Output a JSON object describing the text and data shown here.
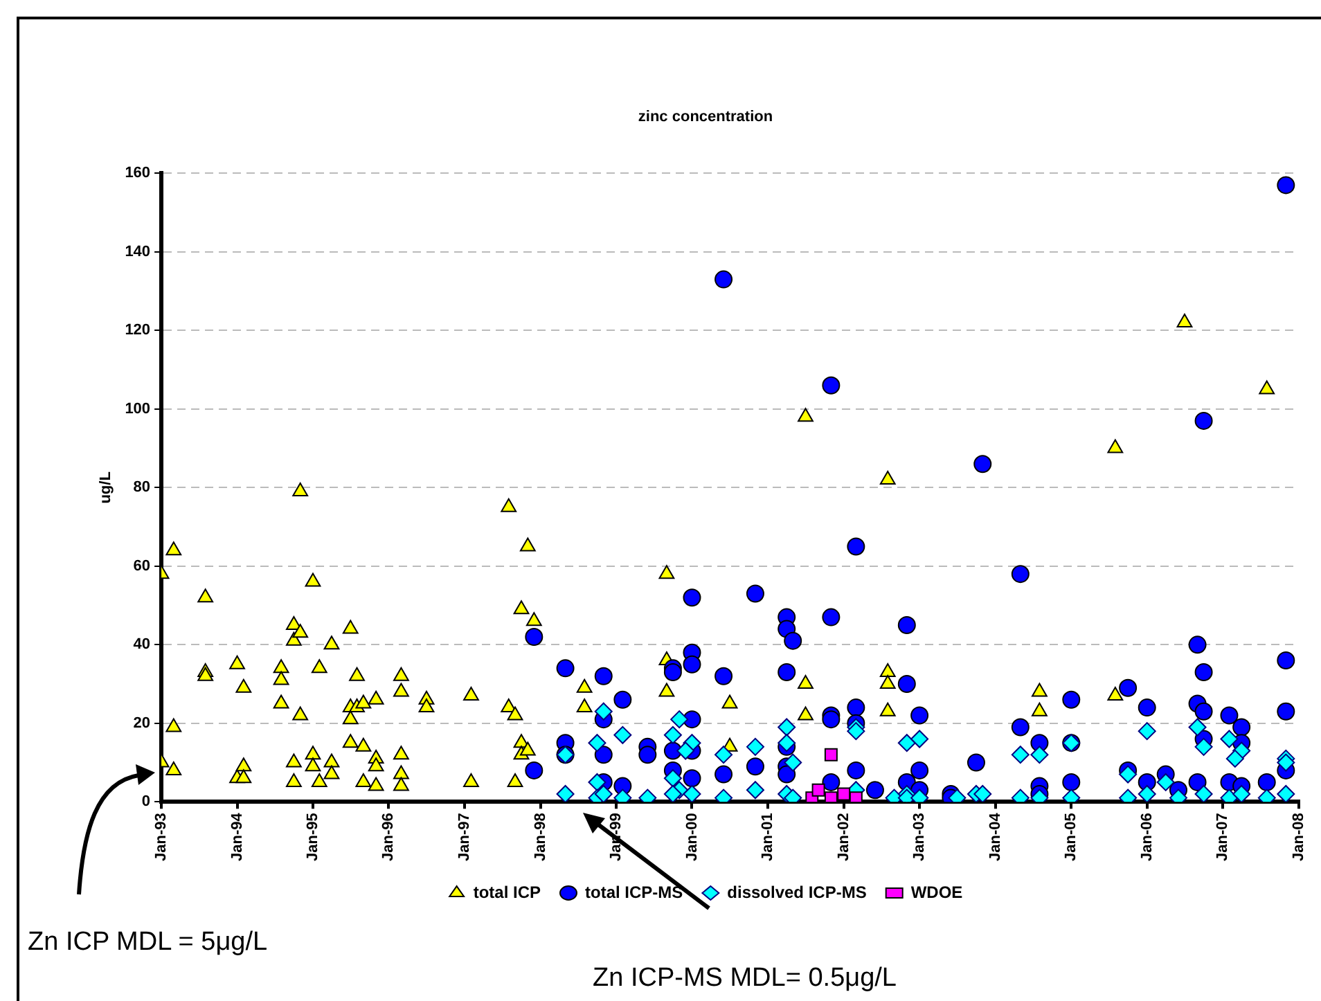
{
  "chart_data": {
    "type": "scatter",
    "title": "zinc concentration",
    "ylabel": "ug/L",
    "xlim": [
      "1993-01",
      "2008-01"
    ],
    "xticks": [
      {
        "value": "1993-01",
        "label": "Jan-93"
      },
      {
        "value": "1994-01",
        "label": "Jan-94"
      },
      {
        "value": "1995-01",
        "label": "Jan-95"
      },
      {
        "value": "1996-01",
        "label": "Jan-96"
      },
      {
        "value": "1997-01",
        "label": "Jan-97"
      },
      {
        "value": "1998-01",
        "label": "Jan-98"
      },
      {
        "value": "1999-01",
        "label": "Jan-99"
      },
      {
        "value": "2000-01",
        "label": "Jan-00"
      },
      {
        "value": "2001-01",
        "label": "Jan-01"
      },
      {
        "value": "2002-01",
        "label": "Jan-02"
      },
      {
        "value": "2003-01",
        "label": "Jan-03"
      },
      {
        "value": "2004-01",
        "label": "Jan-04"
      },
      {
        "value": "2005-01",
        "label": "Jan-05"
      },
      {
        "value": "2006-01",
        "label": "Jan-06"
      },
      {
        "value": "2007-01",
        "label": "Jan-07"
      },
      {
        "value": "2008-01",
        "label": "Jan-08"
      }
    ],
    "ylim": [
      0,
      160
    ],
    "yticks": [
      0,
      20,
      40,
      60,
      80,
      100,
      120,
      140,
      160
    ],
    "grid": "y",
    "legend": "bottom",
    "annotations": [
      "Zn ICP MDL = 5μg/L",
      "Zn ICP-MS MDL= 0.5μg/L"
    ],
    "series": [
      {
        "name": "total ICP",
        "color": "#ffff00",
        "marker": "triangle",
        "x": [
          "1993-01",
          "1993-01",
          "1993-03",
          "1993-03",
          "1993-03",
          "1993-08",
          "1993-08",
          "1993-08",
          "1994-01",
          "1994-01",
          "1994-02",
          "1994-02",
          "1994-02",
          "1994-08",
          "1994-08",
          "1994-08",
          "1994-10",
          "1994-10",
          "1994-10",
          "1994-10",
          "1994-11",
          "1994-11",
          "1994-11",
          "1995-01",
          "1995-01",
          "1995-01",
          "1995-02",
          "1995-02",
          "1995-04",
          "1995-04",
          "1995-04",
          "1995-07",
          "1995-07",
          "1995-07",
          "1995-07",
          "1995-08",
          "1995-08",
          "1995-09",
          "1995-09",
          "1995-09",
          "1995-11",
          "1995-11",
          "1995-11",
          "1995-11",
          "1996-03",
          "1996-03",
          "1996-03",
          "1996-03",
          "1996-03",
          "1996-07",
          "1996-07",
          "1997-02",
          "1997-02",
          "1997-08",
          "1997-08",
          "1997-09",
          "1997-09",
          "1997-10",
          "1997-10",
          "1997-10",
          "1997-11",
          "1997-11",
          "1997-12",
          "1998-08",
          "1998-08",
          "1999-09",
          "1999-09",
          "1999-09",
          "2000-07",
          "2000-07",
          "2001-07",
          "2001-07",
          "2001-07",
          "2002-08",
          "2002-08",
          "2002-08",
          "2002-08",
          "2004-08",
          "2004-08",
          "2005-08",
          "2005-08",
          "2006-07",
          "2007-08"
        ],
        "values": [
          58,
          10,
          64,
          19,
          8,
          52,
          33,
          32,
          35,
          6,
          29,
          9,
          6,
          34,
          31,
          25,
          45,
          41,
          10,
          5,
          79,
          43,
          22,
          56,
          12,
          9,
          34,
          5,
          40,
          10,
          7,
          44,
          24,
          21,
          15,
          32,
          24,
          25,
          14,
          5,
          26,
          11,
          9,
          4,
          32,
          28,
          12,
          7,
          4,
          26,
          24,
          27,
          5,
          75,
          24,
          22,
          5,
          49,
          15,
          12,
          65,
          13,
          46,
          29,
          24,
          58,
          36,
          28,
          25,
          14,
          98,
          30,
          22,
          82,
          33,
          30,
          23,
          28,
          23,
          90,
          27,
          122,
          105
        ]
      },
      {
        "name": "total ICP-MS",
        "color": "#0000ff",
        "marker": "circle",
        "x": [
          "1997-12",
          "1997-12",
          "1998-05",
          "1998-05",
          "1998-05",
          "1998-11",
          "1998-11",
          "1998-11",
          "1998-11",
          "1999-02",
          "1999-02",
          "1999-06",
          "1999-06",
          "1999-10",
          "1999-10",
          "1999-10",
          "1999-10",
          "2000-01",
          "2000-01",
          "2000-01",
          "2000-01",
          "2000-01",
          "2000-01",
          "2000-06",
          "2000-06",
          "2000-06",
          "2000-11",
          "2000-11",
          "2001-04",
          "2001-04",
          "2001-04",
          "2001-04",
          "2001-04",
          "2001-04",
          "2001-05",
          "2001-11",
          "2001-11",
          "2001-11",
          "2001-11",
          "2001-11",
          "2002-03",
          "2002-03",
          "2002-03",
          "2002-03",
          "2002-06",
          "2002-11",
          "2002-11",
          "2002-11",
          "2003-01",
          "2003-01",
          "2003-01",
          "2003-06",
          "2003-06",
          "2003-10",
          "2003-11",
          "2004-05",
          "2004-05",
          "2004-08",
          "2004-08",
          "2004-08",
          "2005-01",
          "2005-01",
          "2005-01",
          "2005-10",
          "2005-10",
          "2006-01",
          "2006-01",
          "2006-04",
          "2006-06",
          "2006-09",
          "2006-09",
          "2006-09",
          "2006-10",
          "2006-10",
          "2006-10",
          "2006-10",
          "2007-02",
          "2007-02",
          "2007-04",
          "2007-04",
          "2007-04",
          "2007-08",
          "2007-11",
          "2007-11",
          "2007-11",
          "2007-11"
        ],
        "values": [
          42,
          8,
          34,
          15,
          12,
          32,
          21,
          12,
          5,
          26,
          4,
          14,
          12,
          34,
          33,
          13,
          8,
          52,
          38,
          35,
          21,
          13,
          6,
          32,
          133,
          7,
          53,
          9,
          47,
          44,
          33,
          14,
          9,
          7,
          41,
          47,
          106,
          22,
          21,
          5,
          65,
          24,
          20,
          8,
          3,
          45,
          30,
          5,
          22,
          8,
          3,
          2,
          1,
          10,
          86,
          58,
          19,
          15,
          4,
          2,
          26,
          15,
          5,
          29,
          8,
          24,
          5,
          7,
          3,
          40,
          25,
          5,
          97,
          33,
          23,
          16,
          22,
          5,
          19,
          15,
          4,
          5,
          157,
          36,
          23,
          8
        ]
      },
      {
        "name": "dissolved ICP-MS",
        "color": "#00ffff",
        "marker": "diamond",
        "x": [
          "1998-05",
          "1998-05",
          "1998-10",
          "1998-10",
          "1998-11",
          "1998-10",
          "1998-11",
          "1999-02",
          "1999-02",
          "1999-06",
          "1999-10",
          "1999-11",
          "2000-01",
          "1999-12",
          "1999-10",
          "1999-11",
          "2000-01",
          "1999-10",
          "2000-06",
          "2000-06",
          "2000-11",
          "2000-11",
          "2001-04",
          "2001-04",
          "2001-05",
          "2001-04",
          "2001-05",
          "2002-03",
          "2002-03",
          "2002-03",
          "2002-09",
          "2002-11",
          "2002-11",
          "2003-01",
          "2003-01",
          "2002-11",
          "2003-01",
          "2003-07",
          "2003-10",
          "2003-11",
          "2004-05",
          "2004-05",
          "2004-08",
          "2004-08",
          "2005-01",
          "2005-01",
          "2005-10",
          "2005-10",
          "2006-01",
          "2006-01",
          "2006-04",
          "2006-06",
          "2006-09",
          "2006-10",
          "2006-10",
          "2007-02",
          "2007-04",
          "2007-03",
          "2007-02",
          "2007-04",
          "2007-08",
          "2007-11",
          "2007-11",
          "2007-11"
        ],
        "values": [
          2,
          12,
          5,
          15,
          23,
          1,
          2,
          17,
          1,
          1,
          17,
          21,
          15,
          13,
          6,
          3,
          2,
          2,
          12,
          1,
          14,
          3,
          19,
          15,
          10,
          2,
          1,
          19,
          18,
          3,
          1,
          15,
          2,
          16,
          1,
          1,
          1,
          1,
          2,
          2,
          12,
          1,
          12,
          1,
          15,
          1,
          7,
          1,
          18,
          2,
          5,
          1,
          19,
          14,
          2,
          16,
          13,
          11,
          1,
          2,
          1,
          11,
          10,
          2
        ]
      },
      {
        "name": "WDOE",
        "color": "#ff00ff",
        "marker": "square",
        "x": [
          "2001-08",
          "2001-09",
          "2001-11",
          "2001-11",
          "2002-01",
          "2002-03"
        ],
        "values": [
          1,
          3,
          12,
          1,
          2,
          1
        ]
      }
    ]
  }
}
